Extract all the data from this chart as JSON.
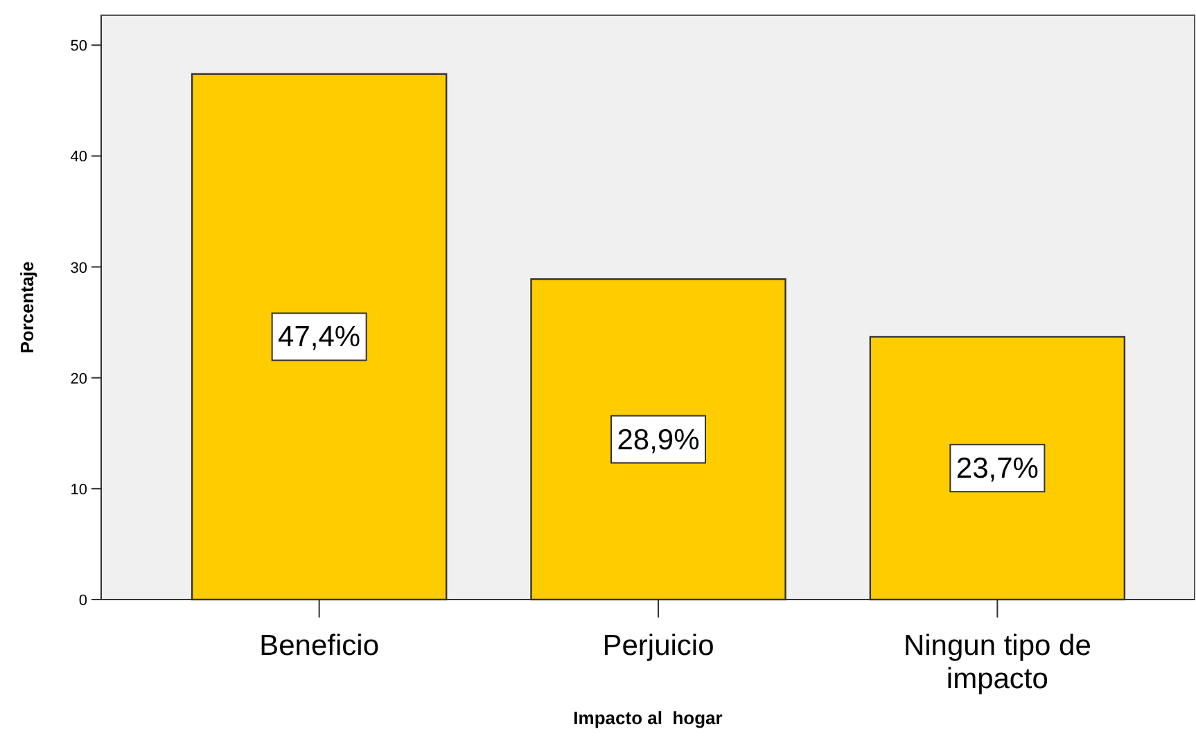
{
  "chart_data": {
    "type": "bar",
    "xlabel": "Impacto al  hogar",
    "ylabel": "Porcentaje",
    "categories": [
      "Beneficio",
      "Perjuicio",
      "Ningun tipo de impacto"
    ],
    "values": [
      47.4,
      28.9,
      23.7
    ],
    "value_labels": [
      "47,4%",
      "28,9%",
      "23,7%"
    ],
    "color": "#ffcc00",
    "ylim": [
      0,
      52.7
    ],
    "yticks": [
      0,
      10,
      20,
      30,
      40,
      50
    ],
    "grid": false
  }
}
